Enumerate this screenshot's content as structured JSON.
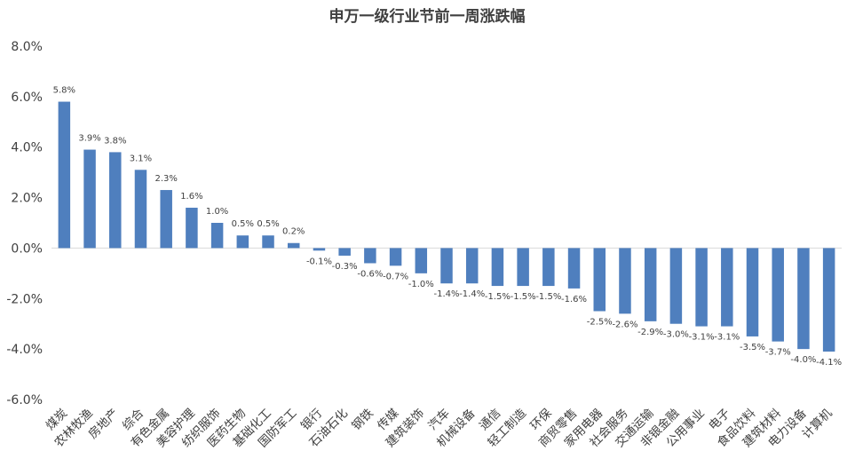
{
  "chart_data": {
    "type": "bar",
    "title": "申万一级行业节前一周涨跌幅",
    "xlabel": "",
    "ylabel": "",
    "ylim": [
      -6,
      8
    ],
    "yticks": [
      8,
      6,
      4,
      2,
      0,
      -2,
      -4,
      -6
    ],
    "ytick_labels": [
      "8.0%",
      "6.0%",
      "4.0%",
      "2.0%",
      "0.0%",
      "-2.0%",
      "-4.0%",
      "-6.0%"
    ],
    "grid": false,
    "legend": "none",
    "bar_color": "#4f7fbe",
    "categories": [
      "煤炭",
      "农林牧渔",
      "房地产",
      "综合",
      "有色金属",
      "美容护理",
      "纺织服饰",
      "医药生物",
      "基础化工",
      "国防军工",
      "银行",
      "石油石化",
      "钢铁",
      "传媒",
      "建筑装饰",
      "汽车",
      "机械设备",
      "通信",
      "轻工制造",
      "环保",
      "商贸零售",
      "家用电器",
      "社会服务",
      "交通运输",
      "非银金融",
      "公用事业",
      "电子",
      "食品饮料",
      "建筑材料",
      "电力设备",
      "计算机"
    ],
    "values": [
      5.8,
      3.9,
      3.8,
      3.1,
      2.3,
      1.6,
      1.0,
      0.5,
      0.5,
      0.2,
      -0.1,
      -0.3,
      -0.6,
      -0.7,
      -1.0,
      -1.4,
      -1.4,
      -1.5,
      -1.5,
      -1.5,
      -1.6,
      -2.5,
      -2.6,
      -2.9,
      -3.0,
      -3.1,
      -3.1,
      -3.5,
      -3.7,
      -4.0,
      -4.1
    ],
    "value_labels": [
      "5.8%",
      "3.9%",
      "3.8%",
      "3.1%",
      "2.3%",
      "1.6%",
      "1.0%",
      "0.5%",
      "0.5%",
      "0.2%",
      "-0.1%",
      "-0.3%",
      "-0.6%",
      "-0.7%",
      "-1.0%",
      "-1.4%",
      "-1.4%",
      "-1.5%",
      "-1.5%",
      "-1.5%",
      "-1.6%",
      "-2.5%",
      "-2.6%",
      "-2.9%",
      "-3.0%",
      "-3.1%",
      "-3.1%",
      "-3.5%",
      "-3.7%",
      "-4.0%",
      "-4.1%"
    ]
  }
}
